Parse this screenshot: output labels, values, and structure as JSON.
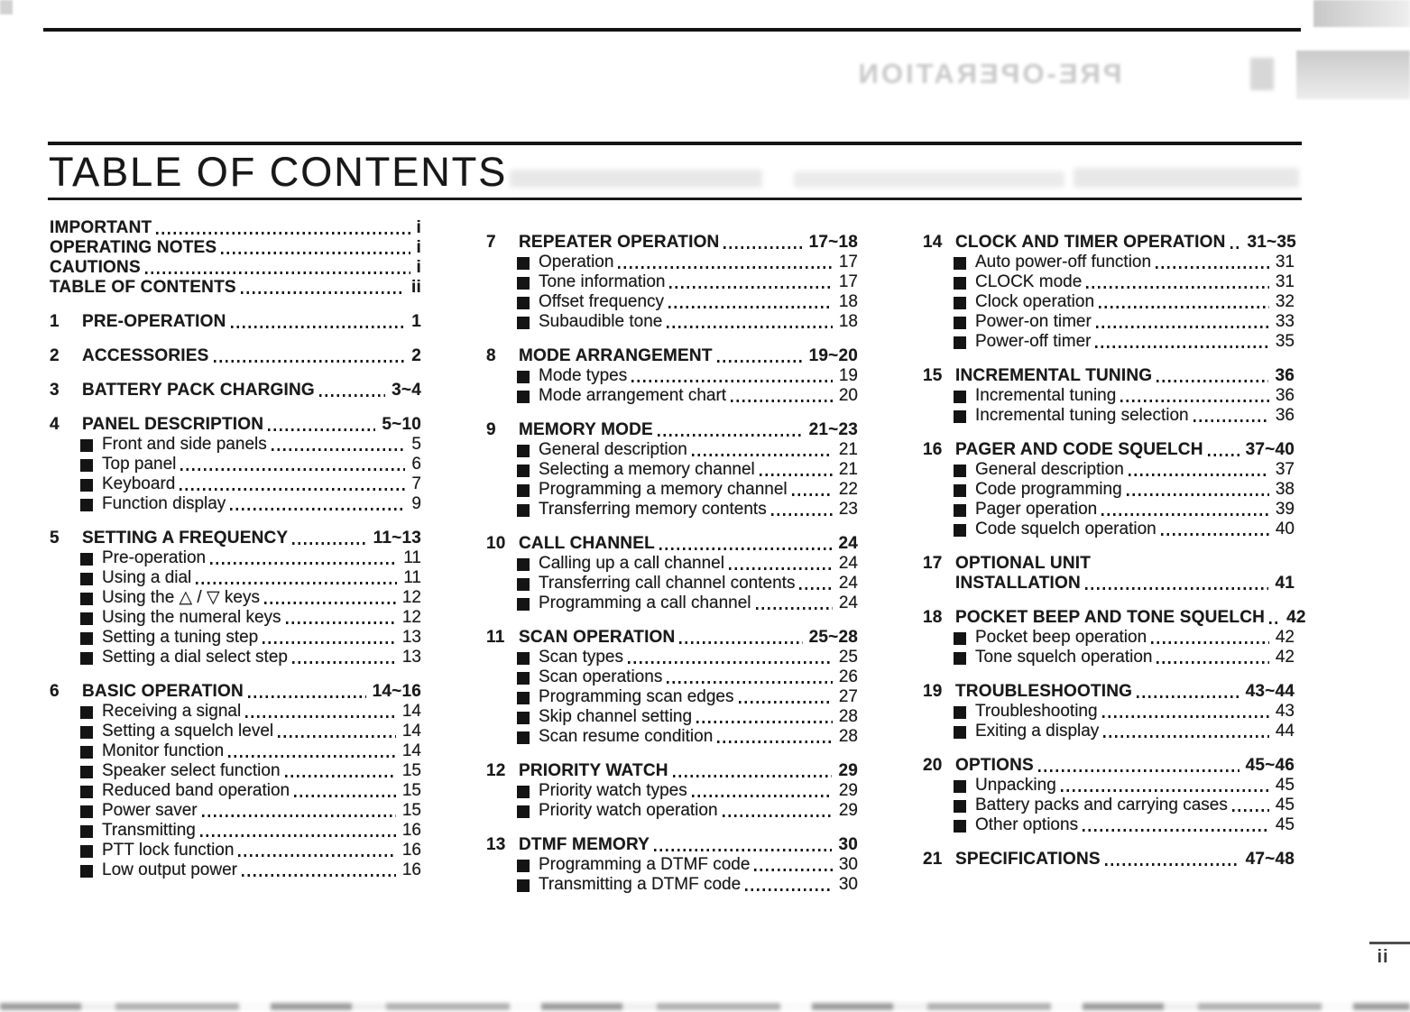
{
  "header": {
    "title": "TABLE OF CONTENTS"
  },
  "ghost_bleed": {
    "text": "PRE-OPERATION"
  },
  "footer": {
    "page_number": "ii"
  },
  "toc": {
    "front_matter": [
      {
        "label": "IMPORTANT",
        "page": "i"
      },
      {
        "label": "OPERATING NOTES",
        "page": "i"
      },
      {
        "label": "CAUTIONS",
        "page": "i"
      },
      {
        "label": "TABLE OF CONTENTS",
        "page": "ii"
      }
    ],
    "columns": [
      [
        {
          "num": "1",
          "title": "PRE-OPERATION",
          "page": "1",
          "subs": []
        },
        {
          "num": "2",
          "title": "ACCESSORIES",
          "page": "2",
          "subs": []
        },
        {
          "num": "3",
          "title": "BATTERY PACK CHARGING",
          "page": "3~4",
          "subs": []
        },
        {
          "num": "4",
          "title": "PANEL DESCRIPTION",
          "page": "5~10",
          "subs": [
            {
              "label": "Front and side panels",
              "page": "5"
            },
            {
              "label": "Top panel",
              "page": "6"
            },
            {
              "label": "Keyboard",
              "page": "7"
            },
            {
              "label": "Function display",
              "page": "9"
            }
          ]
        },
        {
          "num": "5",
          "title": "SETTING A FREQUENCY",
          "page": "11~13",
          "subs": [
            {
              "label": "Pre-operation",
              "page": "11"
            },
            {
              "label": "Using a dial",
              "page": "11"
            },
            {
              "label": "Using the △ / ▽ keys",
              "page": "12"
            },
            {
              "label": "Using the numeral keys",
              "page": "12"
            },
            {
              "label": "Setting a tuning step",
              "page": "13"
            },
            {
              "label": "Setting a dial select step",
              "page": "13"
            }
          ]
        },
        {
          "num": "6",
          "title": "BASIC OPERATION",
          "page": "14~16",
          "subs": [
            {
              "label": "Receiving a signal",
              "page": "14"
            },
            {
              "label": "Setting a squelch level",
              "page": "14"
            },
            {
              "label": "Monitor function",
              "page": "14"
            },
            {
              "label": "Speaker select function",
              "page": "15"
            },
            {
              "label": "Reduced band operation",
              "page": "15"
            },
            {
              "label": "Power saver",
              "page": "15"
            },
            {
              "label": "Transmitting",
              "page": "16"
            },
            {
              "label": "PTT lock function",
              "page": "16"
            },
            {
              "label": "Low output power",
              "page": "16"
            }
          ]
        }
      ],
      [
        {
          "num": "7",
          "title": "REPEATER OPERATION",
          "page": "17~18",
          "subs": [
            {
              "label": "Operation",
              "page": "17"
            },
            {
              "label": "Tone information",
              "page": "17"
            },
            {
              "label": "Offset frequency",
              "page": "18"
            },
            {
              "label": "Subaudible tone",
              "page": "18"
            }
          ]
        },
        {
          "num": "8",
          "title": "MODE ARRANGEMENT",
          "page": "19~20",
          "subs": [
            {
              "label": "Mode types",
              "page": "19"
            },
            {
              "label": "Mode arrangement chart",
              "page": "20"
            }
          ]
        },
        {
          "num": "9",
          "title": "MEMORY MODE",
          "page": "21~23",
          "subs": [
            {
              "label": "General description",
              "page": "21"
            },
            {
              "label": "Selecting a memory channel",
              "page": "21"
            },
            {
              "label": "Programming a memory channel",
              "page": "22"
            },
            {
              "label": "Transferring memory contents",
              "page": "23"
            }
          ]
        },
        {
          "num": "10",
          "title": "CALL CHANNEL",
          "page": "24",
          "subs": [
            {
              "label": "Calling up a call channel",
              "page": "24"
            },
            {
              "label": "Transferring call channel contents",
              "page": "24"
            },
            {
              "label": "Programming a call channel",
              "page": "24"
            }
          ]
        },
        {
          "num": "11",
          "title": "SCAN OPERATION",
          "page": "25~28",
          "subs": [
            {
              "label": "Scan types",
              "page": "25"
            },
            {
              "label": "Scan operations",
              "page": "26"
            },
            {
              "label": "Programming scan edges",
              "page": "27"
            },
            {
              "label": "Skip channel setting",
              "page": "28"
            },
            {
              "label": "Scan resume condition",
              "page": "28"
            }
          ]
        },
        {
          "num": "12",
          "title": "PRIORITY WATCH",
          "page": "29",
          "subs": [
            {
              "label": "Priority watch types",
              "page": "29"
            },
            {
              "label": "Priority watch operation",
              "page": "29"
            }
          ]
        },
        {
          "num": "13",
          "title": "DTMF MEMORY",
          "page": "30",
          "subs": [
            {
              "label": "Programming a DTMF code",
              "page": "30"
            },
            {
              "label": "Transmitting a DTMF code",
              "page": "30"
            }
          ]
        }
      ],
      [
        {
          "num": "14",
          "title": "CLOCK AND TIMER OPERATION",
          "page": "31~35",
          "subs": [
            {
              "label": "Auto power-off function",
              "page": "31"
            },
            {
              "label": "CLOCK mode",
              "page": "31"
            },
            {
              "label": "Clock operation",
              "page": "32"
            },
            {
              "label": "Power-on timer",
              "page": "33"
            },
            {
              "label": "Power-off timer",
              "page": "35"
            }
          ]
        },
        {
          "num": "15",
          "title": "INCREMENTAL TUNING",
          "page": "36",
          "subs": [
            {
              "label": "Incremental tuning",
              "page": "36"
            },
            {
              "label": "Incremental tuning selection",
              "page": "36"
            }
          ]
        },
        {
          "num": "16",
          "title": "PAGER AND CODE SQUELCH",
          "page": "37~40",
          "subs": [
            {
              "label": "General description",
              "page": "37"
            },
            {
              "label": "Code programming",
              "page": "38"
            },
            {
              "label": "Pager operation",
              "page": "39"
            },
            {
              "label": "Code squelch operation",
              "page": "40"
            }
          ]
        },
        {
          "num": "17",
          "title": "OPTIONAL UNIT",
          "title2": "INSTALLATION",
          "page": "41",
          "subs": []
        },
        {
          "num": "18",
          "title": "POCKET BEEP AND TONE SQUELCH",
          "page": "42",
          "subs": [
            {
              "label": "Pocket beep operation",
              "page": "42"
            },
            {
              "label": "Tone squelch operation",
              "page": "42"
            }
          ]
        },
        {
          "num": "19",
          "title": "TROUBLESHOOTING",
          "page": "43~44",
          "subs": [
            {
              "label": "Troubleshooting",
              "page": "43"
            },
            {
              "label": "Exiting a display",
              "page": "44"
            }
          ]
        },
        {
          "num": "20",
          "title": "OPTIONS",
          "page": "45~46",
          "subs": [
            {
              "label": "Unpacking",
              "page": "45"
            },
            {
              "label": "Battery packs and carrying cases",
              "page": "45"
            },
            {
              "label": "Other options",
              "page": "45"
            }
          ]
        },
        {
          "num": "21",
          "title": "SPECIFICATIONS",
          "page": "47~48",
          "subs": []
        }
      ]
    ]
  }
}
